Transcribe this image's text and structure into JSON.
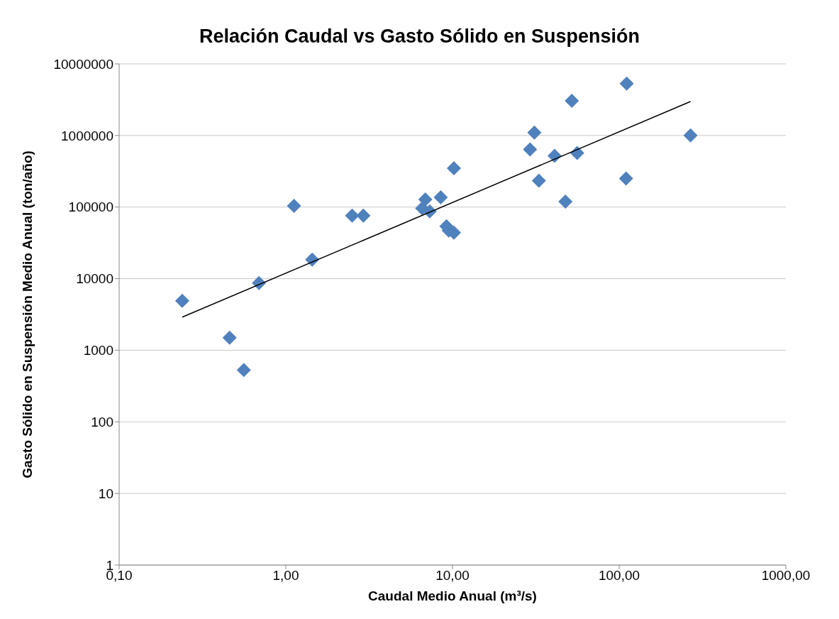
{
  "chart_data": {
    "type": "scatter",
    "title": "Relación Caudal vs Gasto Sólido en Suspensión",
    "xlabel": "Caudal Medio Anual (m³/s)",
    "ylabel": "Gasto Sólido en Suspensión Medio Anual (ton/año)",
    "x": [
      0.239,
      0.46,
      0.56,
      0.69,
      1.12,
      1.44,
      2.5,
      2.92,
      6.87,
      6.58,
      7.3,
      8.5,
      9.2,
      9.5,
      10.2,
      10.2,
      29.2,
      31,
      33,
      41,
      47.6,
      52,
      56,
      110,
      111,
      268
    ],
    "series": [
      {
        "color": "#4f81bd",
        "values": [
          4900,
          1500,
          530,
          8700,
          104000,
          18400,
          76000,
          76000,
          128000,
          96000,
          87000,
          137000,
          54000,
          47000,
          44000,
          348000,
          640000,
          1100000,
          234000,
          520000,
          119000,
          3050000,
          570000,
          251000,
          5300000,
          1000000
        ]
      },
      {
        "type": "line",
        "marker": "none",
        "color": "#000000",
        "x": [
          0.239,
          268
        ],
        "values": [
          2900,
          2980000
        ]
      }
    ],
    "log": "xy",
    "xlim": [
      0.1,
      1000
    ],
    "ylim": [
      1,
      10000000
    ],
    "xticks": [
      {
        "value": 0.1,
        "label": "0,10"
      },
      {
        "value": 1,
        "label": "1,00"
      },
      {
        "value": 10,
        "label": "10,00"
      },
      {
        "value": 100,
        "label": "100,00"
      },
      {
        "value": 1000,
        "label": "1000,00"
      }
    ],
    "yticks": [
      1,
      10,
      100,
      1000,
      10000,
      100000,
      1000000,
      10000000
    ],
    "grid": "y",
    "marker": "diamond"
  }
}
